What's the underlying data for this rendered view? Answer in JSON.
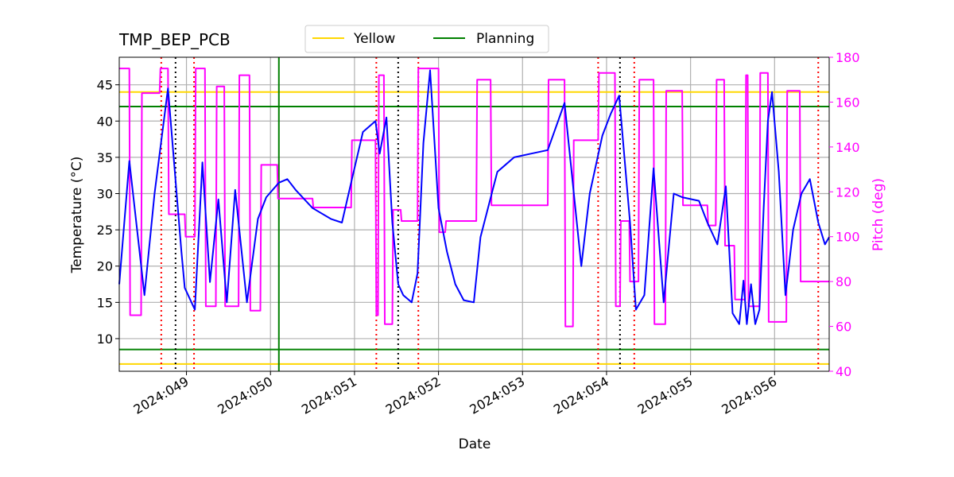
{
  "chart_data": {
    "type": "line",
    "title": "TMP_BEP_PCB",
    "xlabel": "Date",
    "ylabel": "Temperature ($^\\circ$C)",
    "ylabel_display": "Temperature (°C)",
    "y2label": "Pitch (deg)",
    "xlim": [
      48.2,
      56.65
    ],
    "ylim": [
      5.5,
      48.8
    ],
    "y2lim": [
      40,
      180
    ],
    "x_ticks": [
      49,
      50,
      51,
      52,
      53,
      54,
      55,
      56
    ],
    "x_tick_labels": [
      "2024:049",
      "2024:050",
      "2024:051",
      "2024:052",
      "2024:053",
      "2024:054",
      "2024:055",
      "2024:056"
    ],
    "y_ticks": [
      10,
      15,
      20,
      25,
      30,
      35,
      40,
      45
    ],
    "y2_ticks": [
      40,
      60,
      80,
      100,
      120,
      140,
      160,
      180
    ],
    "grid": true,
    "legend": {
      "placement": "top-center",
      "entries": [
        "Yellow",
        "Planning"
      ]
    },
    "colors": {
      "temperature": "#0000ff",
      "pitch": "#ff00ff",
      "yellow": "#ffd700",
      "planning": "#008000",
      "red_events": "#ff0000",
      "black_events": "#000000",
      "pitch_axis": "#ff00ff",
      "grid": "#b0b0b0"
    },
    "series": [
      {
        "axis": "left",
        "x": [
          48.2,
          48.32,
          48.5,
          48.62,
          48.78,
          48.94,
          48.98,
          49.1,
          49.19,
          49.28,
          49.38,
          49.48,
          49.58,
          49.72,
          49.85,
          49.95,
          50.1,
          50.2,
          50.3,
          50.5,
          50.72,
          50.85,
          50.97,
          51.1,
          51.25,
          51.3,
          51.38,
          51.45,
          51.52,
          51.58,
          51.68,
          51.75,
          51.82,
          51.9,
          52.0,
          52.1,
          52.2,
          52.3,
          52.42,
          52.5,
          52.7,
          52.9,
          53.1,
          53.3,
          53.5,
          53.7,
          53.8,
          53.95,
          54.05,
          54.15,
          54.28,
          54.35,
          54.45,
          54.56,
          54.68,
          54.8,
          54.9,
          55.1,
          55.2,
          55.32,
          55.42,
          55.5,
          55.58,
          55.63,
          55.67,
          55.72,
          55.77,
          55.82,
          55.87,
          55.92,
          55.97,
          56.05,
          56.13,
          56.22,
          56.32,
          56.42,
          56.52,
          56.6,
          56.65
        ],
        "y": [
          17.5,
          34.5,
          16.0,
          30.0,
          44.5,
          22.0,
          17.0,
          14.0,
          34.3,
          17.8,
          29.2,
          15.0,
          30.5,
          15.0,
          26.5,
          29.5,
          31.5,
          32.0,
          30.5,
          28.0,
          26.5,
          26.0,
          32.0,
          38.5,
          40.0,
          35.5,
          40.5,
          26.0,
          17.5,
          16.0,
          15.0,
          19.0,
          37.0,
          47.0,
          28.0,
          22.0,
          17.5,
          15.3,
          15.0,
          24.0,
          33.0,
          35.0,
          35.5,
          36.0,
          42.5,
          20.0,
          30.0,
          38.0,
          41.0,
          43.5,
          26.0,
          14.0,
          16.0,
          33.5,
          15.0,
          30.0,
          29.5,
          29.0,
          26.0,
          23.0,
          31.0,
          13.5,
          12.0,
          18.0,
          12.0,
          17.5,
          12.0,
          14.0,
          28.0,
          40.0,
          44.0,
          33.0,
          16.0,
          25.0,
          30.0,
          32.0,
          26.0,
          23.0,
          24.0
        ]
      },
      {
        "axis": "right",
        "step": true,
        "x": [
          48.2,
          48.32,
          48.33,
          48.46,
          48.47,
          48.68,
          48.69,
          48.78,
          48.79,
          48.98,
          48.99,
          49.1,
          49.11,
          49.22,
          49.23,
          49.35,
          49.36,
          49.45,
          49.46,
          49.62,
          49.63,
          49.75,
          49.76,
          49.88,
          49.89,
          50.08,
          50.09,
          50.2,
          50.21,
          50.5,
          50.51,
          50.96,
          50.97,
          51.25,
          51.26,
          51.28,
          51.29,
          51.35,
          51.36,
          51.45,
          51.46,
          51.55,
          51.56,
          51.75,
          51.76,
          52.0,
          52.01,
          52.08,
          52.09,
          52.45,
          52.46,
          52.62,
          52.63,
          53.3,
          53.31,
          53.5,
          53.51,
          53.6,
          53.61,
          53.9,
          53.91,
          54.1,
          54.11,
          54.16,
          54.17,
          54.27,
          54.28,
          54.38,
          54.39,
          54.56,
          54.57,
          54.7,
          54.71,
          54.9,
          54.91,
          55.2,
          55.21,
          55.3,
          55.31,
          55.4,
          55.41,
          55.52,
          55.53,
          55.65,
          55.66,
          55.68,
          55.69,
          55.82,
          55.83,
          55.92,
          55.93,
          56.14,
          56.15,
          56.3,
          56.31,
          56.5,
          56.51,
          56.65
        ],
        "y": [
          175,
          175,
          65,
          65,
          164,
          164,
          175,
          175,
          110,
          110,
          100,
          100,
          175,
          175,
          69,
          69,
          167,
          167,
          69,
          69,
          172,
          172,
          67,
          67,
          132,
          132,
          117,
          117,
          117,
          117,
          113,
          113,
          143,
          143,
          65,
          65,
          172,
          172,
          61,
          61,
          112,
          112,
          107,
          107,
          175,
          175,
          102,
          102,
          107,
          107,
          170,
          170,
          114,
          114,
          170,
          170,
          60,
          60,
          143,
          143,
          173,
          173,
          69,
          69,
          107,
          107,
          80,
          80,
          170,
          170,
          61,
          61,
          165,
          165,
          114,
          114,
          105,
          105,
          170,
          170,
          96,
          96,
          72,
          72,
          172,
          172,
          69,
          69,
          173,
          173,
          62,
          62,
          165,
          165,
          80,
          80,
          80,
          80
        ]
      }
    ],
    "reference_lines": [
      {
        "name": "Yellow",
        "axis": "left",
        "orientation": "horizontal",
        "values": [
          44.0,
          6.5
        ]
      },
      {
        "name": "Planning",
        "axis": "left",
        "orientation": "horizontal",
        "values": [
          42.0,
          8.5
        ]
      },
      {
        "axis": "x",
        "orientation": "vertical",
        "style": "solid",
        "color": "planning",
        "values": [
          50.1
        ]
      },
      {
        "axis": "x",
        "orientation": "vertical",
        "style": "dotted",
        "color": "red_events",
        "values": [
          48.7,
          49.09,
          51.26,
          51.76,
          53.9,
          54.33,
          56.52
        ]
      },
      {
        "axis": "x",
        "orientation": "vertical",
        "style": "dotted",
        "color": "black_events",
        "values": [
          48.87,
          51.52,
          54.16
        ]
      }
    ]
  }
}
